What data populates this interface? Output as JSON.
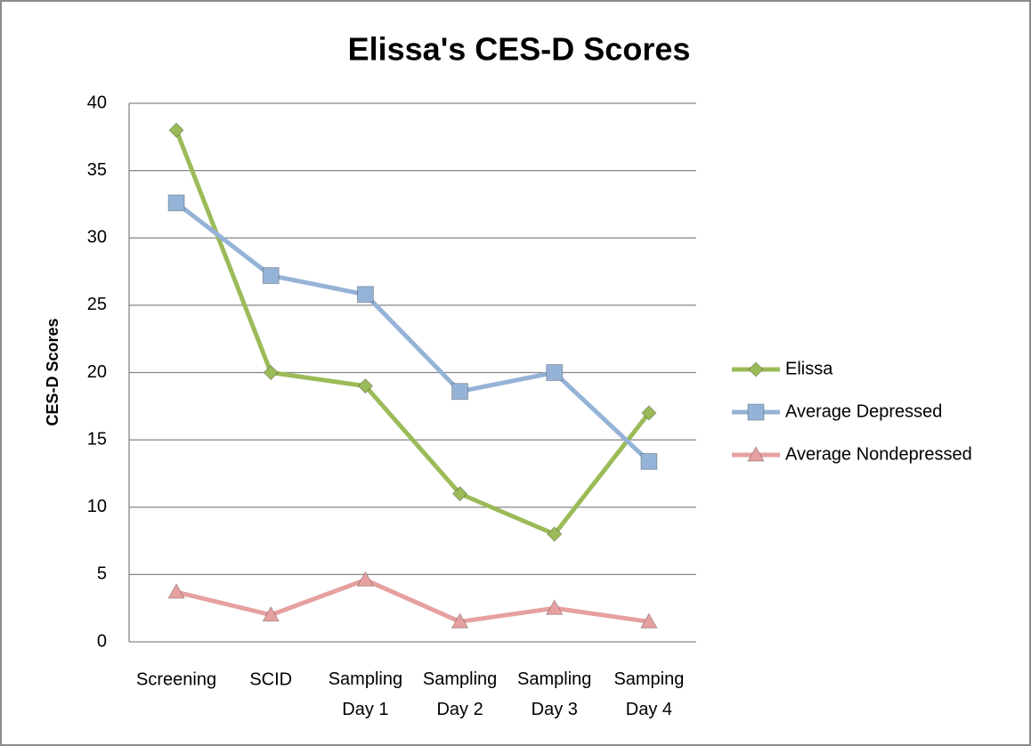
{
  "chart_data": {
    "type": "line",
    "title": "Elissa's CES-D Scores",
    "y_label": "CES-D Scores",
    "categories": [
      "Screening",
      "SCID",
      "Sampling Day 1",
      "Sampling Day 2",
      "Sampling Day 3",
      "Samping Day 4"
    ],
    "series": [
      {
        "name": "Elissa",
        "color": "#9bbb59",
        "marker": "diamond",
        "values": [
          38,
          20,
          19,
          11,
          8,
          17
        ]
      },
      {
        "name": "Average Depressed",
        "color": "#95b3d7",
        "marker": "square",
        "values": [
          32.6,
          27.2,
          25.8,
          18.6,
          20,
          13.4
        ]
      },
      {
        "name": "Average Nondepressed",
        "color": "#e6a0a0",
        "marker": "triangle",
        "values": [
          3.7,
          2.0,
          4.6,
          1.5,
          2.5,
          1.5
        ]
      }
    ],
    "ylim": [
      0,
      40
    ],
    "yticks": [
      0,
      5,
      10,
      15,
      20,
      25,
      30,
      35,
      40
    ],
    "grid": true,
    "legend": "right"
  }
}
